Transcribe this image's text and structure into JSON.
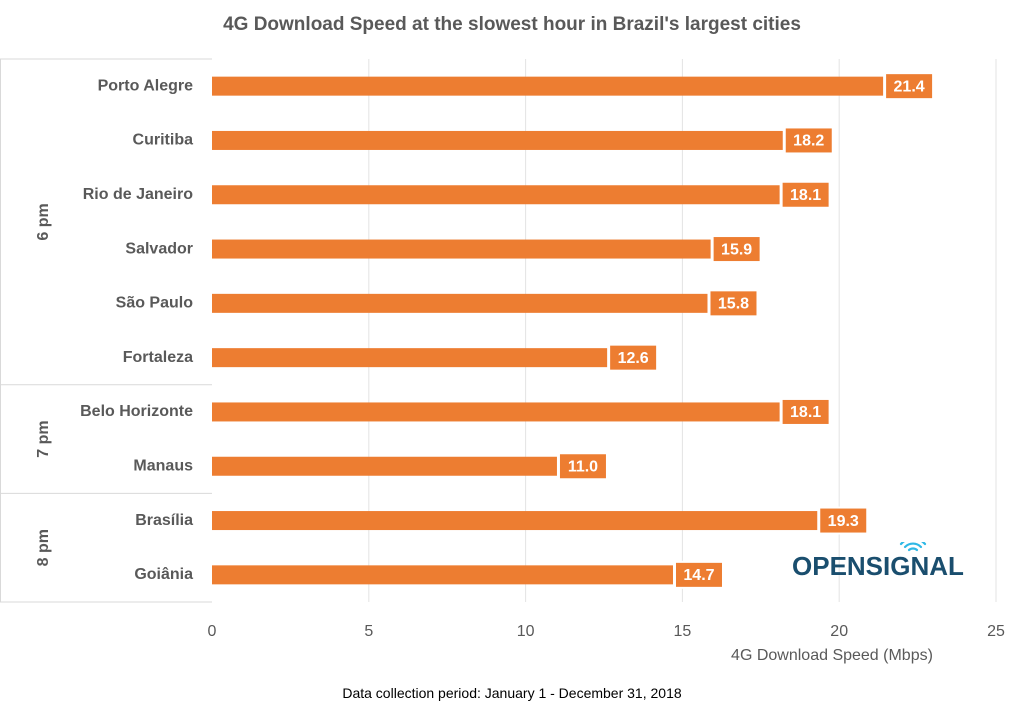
{
  "chart_data": {
    "type": "bar",
    "orientation": "horizontal",
    "title": "4G Download Speed at the slowest hour in Brazil's largest cities",
    "xlabel": "4G Download Speed (Mbps)",
    "ylabel": "",
    "xlim": [
      0,
      25
    ],
    "xticks": [
      "0",
      "5",
      "10",
      "15",
      "20",
      "25"
    ],
    "grid": "vertical",
    "groups": [
      {
        "name": "6 pm",
        "categories": [
          "Porto Alegre",
          "Curitiba",
          "Rio de Janeiro",
          "Salvador",
          "São Paulo",
          "Fortaleza"
        ],
        "values": [
          21.4,
          18.2,
          18.1,
          15.9,
          15.8,
          12.6
        ]
      },
      {
        "name": "7 pm",
        "categories": [
          "Belo Horizonte",
          "Manaus"
        ],
        "values": [
          18.1,
          11.0
        ]
      },
      {
        "name": "8 pm",
        "categories": [
          "Brasília",
          "Goiânia"
        ],
        "values": [
          19.3,
          14.7
        ]
      }
    ],
    "bar_color": "#ED7D31"
  },
  "footnote": "Data collection period: January 1 - December 31, 2018",
  "logo": {
    "text_open": "OPENS",
    "text_i": "I",
    "text_gnal": "GNAL",
    "color": "#1A4E6E",
    "accent": "#2EB8E6"
  }
}
